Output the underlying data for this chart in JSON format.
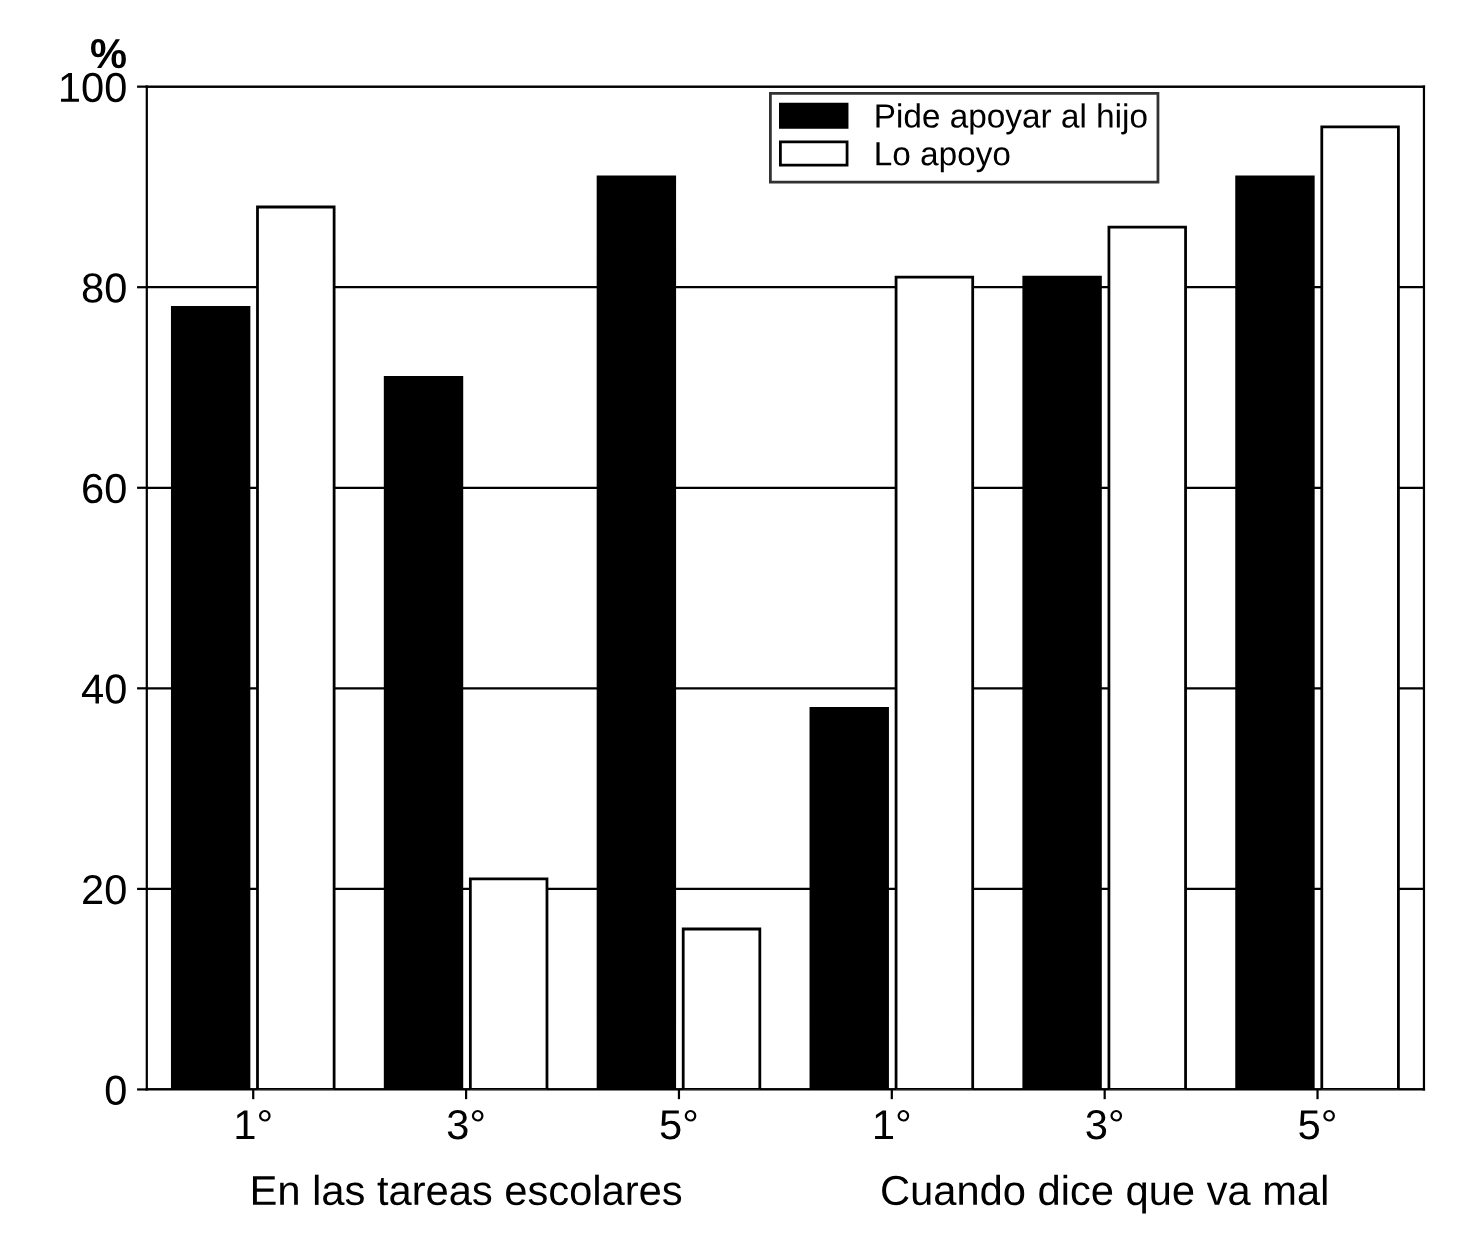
{
  "chart_data": {
    "type": "bar",
    "ylabel": "%",
    "categories": [
      "1°",
      "3°",
      "5°",
      "1°",
      "3°",
      "5°"
    ],
    "series": [
      {
        "name": "Pide apoyar al hijo",
        "color": "#000000",
        "values": [
          78,
          71,
          91,
          38,
          81,
          91
        ]
      },
      {
        "name": "Lo apoyo",
        "color": "#ffffff",
        "values": [
          88,
          21,
          16,
          81,
          86,
          96
        ]
      }
    ],
    "ylim": [
      0,
      100
    ],
    "yticks": [
      0,
      20,
      40,
      60,
      80,
      100
    ],
    "grid": "y",
    "legend": "top right",
    "annotations": [
      "En las tareas escolares",
      "Cuando dice que va mal"
    ]
  }
}
